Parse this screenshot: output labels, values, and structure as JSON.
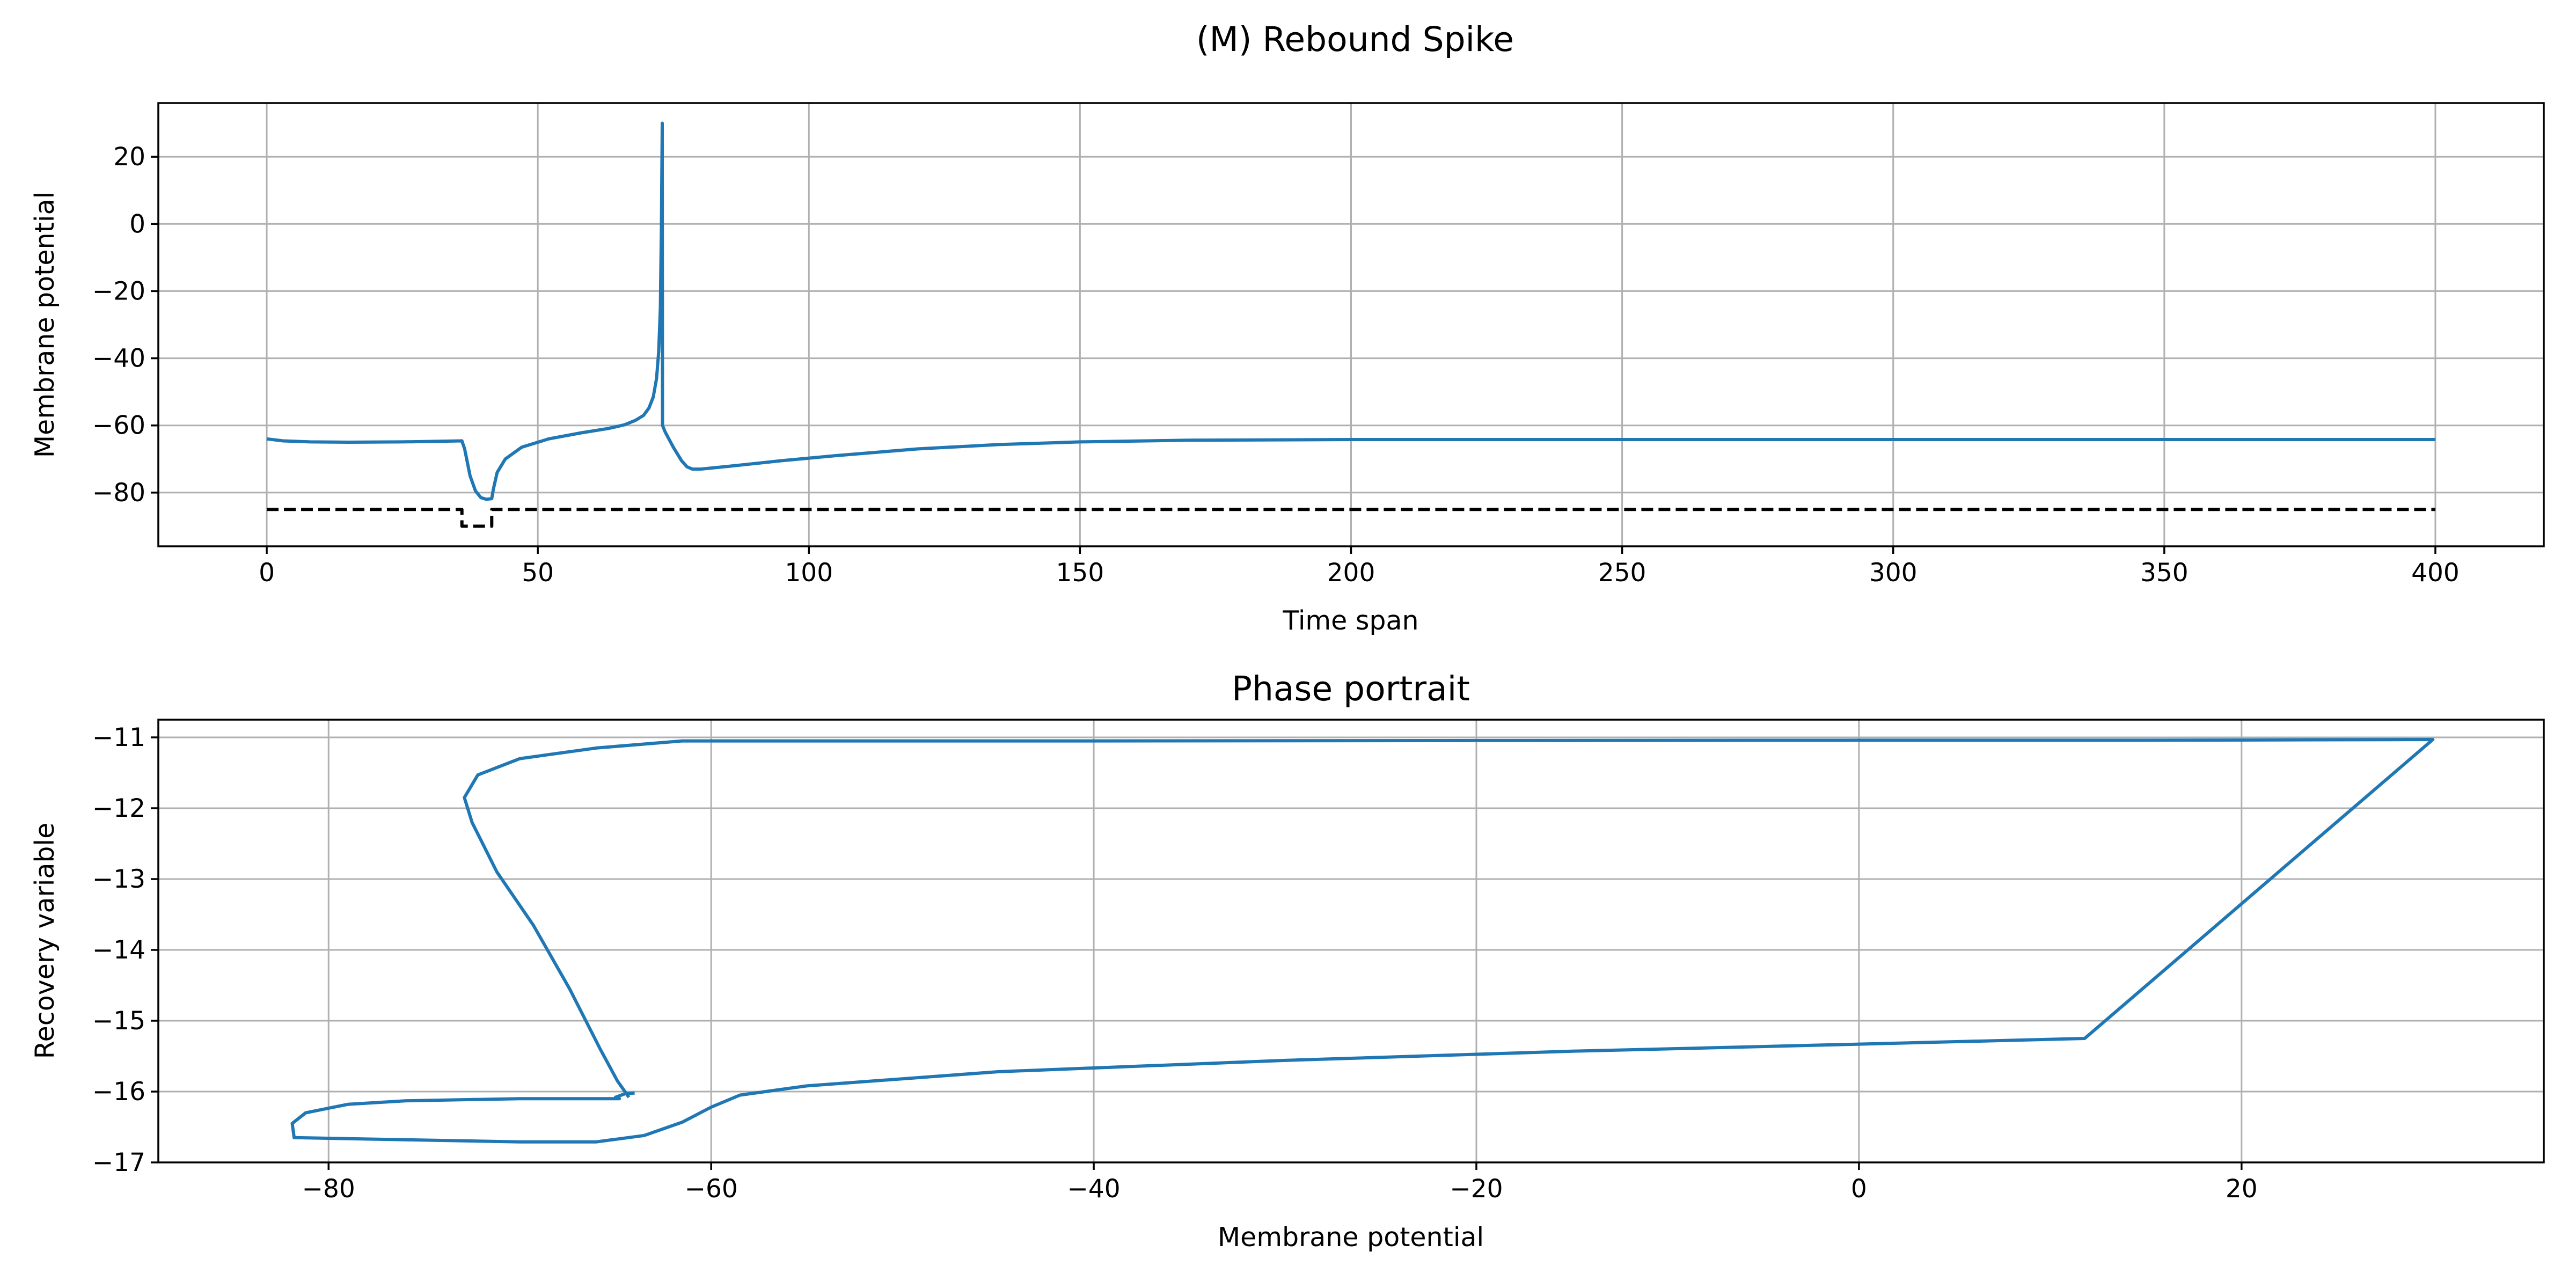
{
  "figure": {
    "suptitle": "(M) Rebound Spike"
  },
  "chart_data": [
    {
      "type": "line",
      "title": "",
      "xlabel": "Time span",
      "ylabel": "Membrane potential",
      "xlim": [
        -20,
        420
      ],
      "ylim": [
        -96,
        36
      ],
      "xticks": [
        0,
        50,
        100,
        150,
        200,
        250,
        300,
        350,
        400
      ],
      "yticks": [
        -80,
        -60,
        -40,
        -20,
        0,
        20
      ],
      "grid": true,
      "series": [
        {
          "color": "#1f77b4",
          "style": "solid",
          "points": [
            [
              0,
              -64
            ],
            [
              3,
              -64.6
            ],
            [
              8,
              -64.9
            ],
            [
              15,
              -65
            ],
            [
              25,
              -64.9
            ],
            [
              36,
              -64.6
            ],
            [
              36.5,
              -67
            ],
            [
              37.5,
              -75
            ],
            [
              38.5,
              -79.5
            ],
            [
              39.5,
              -81.5
            ],
            [
              40.5,
              -82
            ],
            [
              41.5,
              -81.8
            ],
            [
              41.8,
              -79
            ],
            [
              42.5,
              -74
            ],
            [
              44,
              -70
            ],
            [
              47,
              -66.5
            ],
            [
              52,
              -64
            ],
            [
              58,
              -62.2
            ],
            [
              63,
              -60.9
            ],
            [
              66,
              -59.8
            ],
            [
              68,
              -58.5
            ],
            [
              69.5,
              -57
            ],
            [
              70.5,
              -54.8
            ],
            [
              71.3,
              -51.5
            ],
            [
              71.9,
              -46
            ],
            [
              72.3,
              -38
            ],
            [
              72.6,
              -25
            ],
            [
              72.8,
              0
            ],
            [
              72.95,
              30
            ],
            [
              73,
              -60
            ],
            [
              73.5,
              -62
            ],
            [
              75,
              -66.5
            ],
            [
              76.5,
              -70.5
            ],
            [
              77.5,
              -72.3
            ],
            [
              78.5,
              -73
            ],
            [
              80,
              -73
            ],
            [
              85,
              -72.2
            ],
            [
              95,
              -70.5
            ],
            [
              105,
              -69
            ],
            [
              120,
              -67
            ],
            [
              135,
              -65.7
            ],
            [
              150,
              -64.9
            ],
            [
              170,
              -64.4
            ],
            [
              200,
              -64.2
            ],
            [
              250,
              -64.2
            ],
            [
              300,
              -64.2
            ],
            [
              350,
              -64.2
            ],
            [
              400,
              -64.2
            ]
          ]
        },
        {
          "color": "#000000",
          "style": "dashed",
          "points": [
            [
              0,
              -85
            ],
            [
              36,
              -85
            ],
            [
              36,
              -90
            ],
            [
              41.5,
              -90
            ],
            [
              41.5,
              -85
            ],
            [
              400,
              -85
            ]
          ]
        }
      ]
    },
    {
      "type": "line",
      "title": "Phase portrait",
      "xlabel": "Membrane potential",
      "ylabel": "Recovery variable",
      "xlim": [
        -88.9,
        35.8
      ],
      "ylim": [
        -17,
        -10.75
      ],
      "xticks": [
        -80,
        -60,
        -40,
        -20,
        0,
        20
      ],
      "yticks": [
        -17,
        -16,
        -15,
        -14,
        -13,
        -12,
        -11
      ],
      "grid": true,
      "series": [
        {
          "color": "#1f77b4",
          "style": "solid",
          "points": [
            [
              -64,
              -16.02
            ],
            [
              -64.5,
              -16.03
            ],
            [
              -65,
              -16.08
            ],
            [
              -64.8,
              -16.1
            ],
            [
              -70,
              -16.1
            ],
            [
              -76,
              -16.13
            ],
            [
              -79,
              -16.18
            ],
            [
              -81.2,
              -16.3
            ],
            [
              -81.9,
              -16.45
            ],
            [
              -81.8,
              -16.65
            ],
            [
              -76,
              -16.68
            ],
            [
              -70,
              -16.71
            ],
            [
              -66,
              -16.71
            ],
            [
              -63.5,
              -16.62
            ],
            [
              -61.5,
              -16.43
            ],
            [
              -60,
              -16.22
            ],
            [
              -58.5,
              -16.05
            ],
            [
              -55,
              -15.92
            ],
            [
              -45,
              -15.72
            ],
            [
              -30,
              -15.56
            ],
            [
              -15,
              -15.43
            ],
            [
              0,
              -15.33
            ],
            [
              11.8,
              -15.25
            ],
            [
              30,
              -11.03
            ],
            [
              15,
              -11.04
            ],
            [
              0,
              -11.04
            ],
            [
              -20,
              -11.045
            ],
            [
              -40,
              -11.05
            ],
            [
              -61.5,
              -11.05
            ],
            [
              -66,
              -11.15
            ],
            [
              -70,
              -11.3
            ],
            [
              -72.2,
              -11.53
            ],
            [
              -72.9,
              -11.85
            ],
            [
              -72.5,
              -12.2
            ],
            [
              -71.2,
              -12.9
            ],
            [
              -69.3,
              -13.65
            ],
            [
              -67.4,
              -14.55
            ],
            [
              -65.8,
              -15.4
            ],
            [
              -64.9,
              -15.85
            ],
            [
              -64.3,
              -16.08
            ]
          ]
        }
      ]
    }
  ]
}
